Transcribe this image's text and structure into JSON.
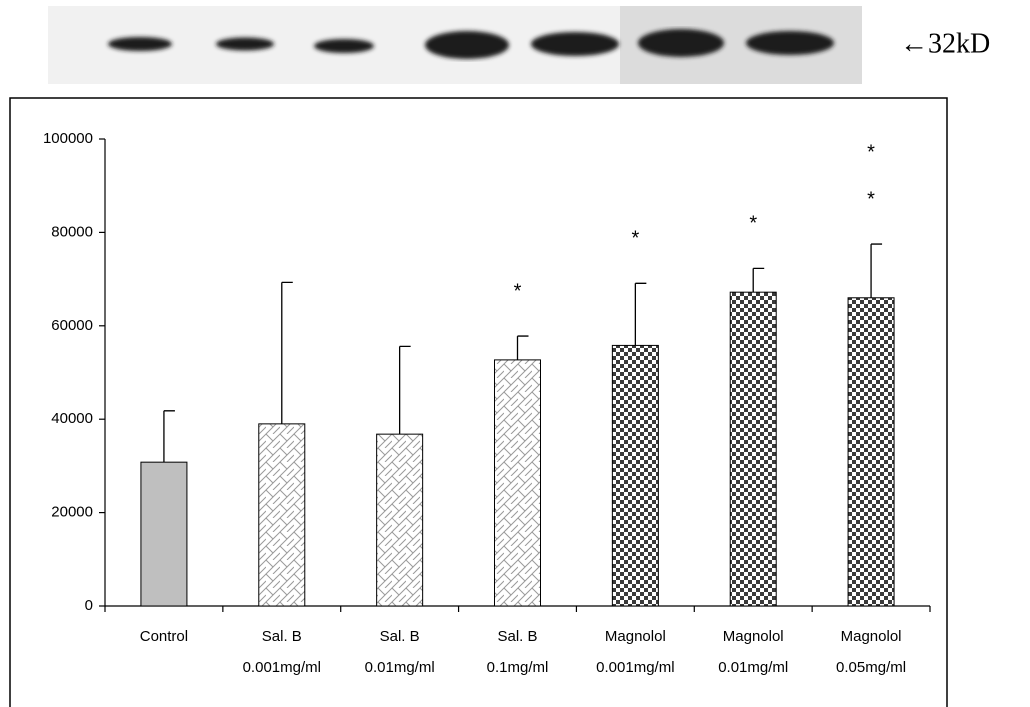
{
  "blot": {
    "label": "←32kD"
  },
  "chart_data": {
    "type": "bar",
    "categories": [
      [
        "Control"
      ],
      [
        "Sal. B",
        "0.001mg/ml"
      ],
      [
        "Sal. B",
        "0.01mg/ml"
      ],
      [
        "Sal. B",
        "0.1mg/ml"
      ],
      [
        "Magnolol",
        "0.001mg/ml"
      ],
      [
        "Magnolol",
        "0.01mg/ml"
      ],
      [
        "Magnolol",
        "0.05mg/ml"
      ]
    ],
    "values": [
      30800,
      39000,
      36800,
      52700,
      55800,
      67200,
      66000
    ],
    "errors": [
      11000,
      30300,
      18800,
      5100,
      13300,
      5100,
      11500
    ],
    "fills": [
      "solid",
      "diagonal",
      "diagonal",
      "diagonal",
      "checker",
      "checker",
      "checker"
    ],
    "color": "#bfbfbf",
    "significance": [
      [],
      [],
      [],
      [
        "*"
      ],
      [
        "*"
      ],
      [
        "*"
      ],
      [
        "*",
        "*"
      ]
    ],
    "ylim": [
      0,
      100000
    ],
    "yticks": [
      0,
      20000,
      40000,
      60000,
      80000,
      100000
    ]
  }
}
